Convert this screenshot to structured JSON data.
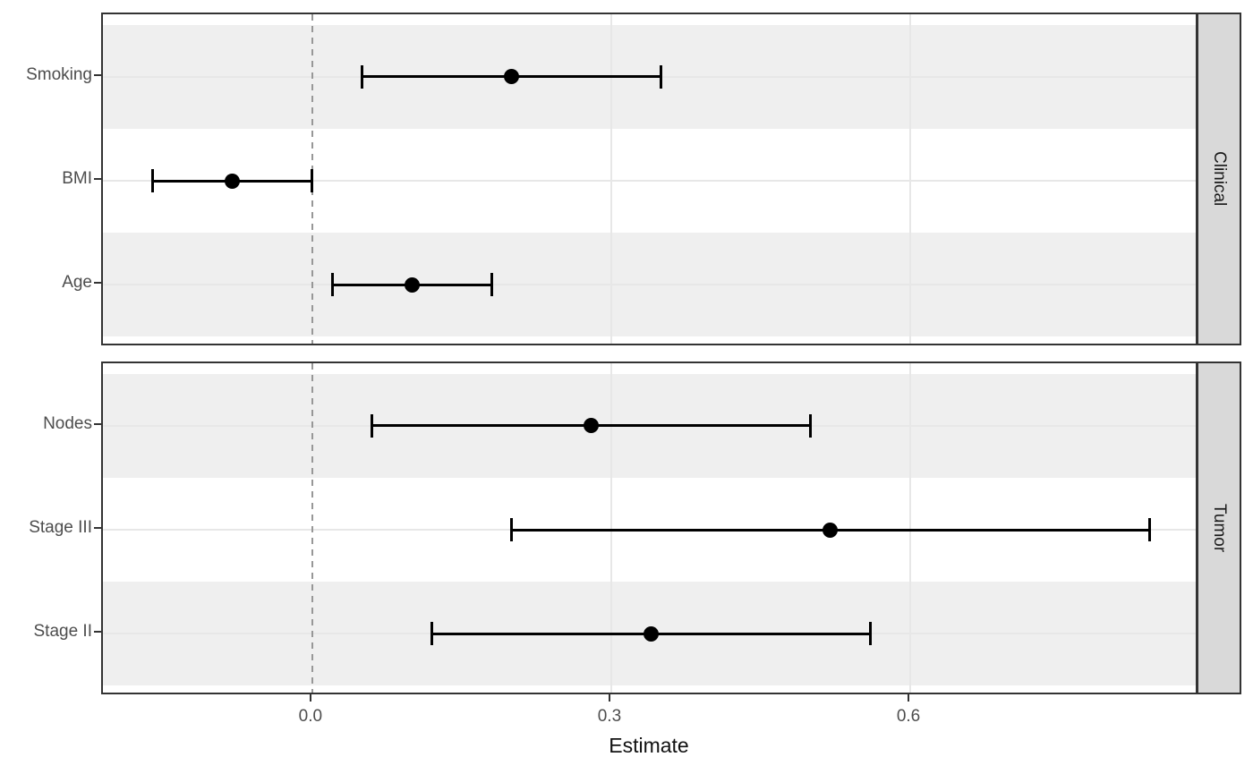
{
  "chart_data": {
    "type": "scatter",
    "subtype": "forest-plot-pointrange",
    "xlabel": "Estimate",
    "x_ticks": [
      0.0,
      0.3,
      0.6
    ],
    "x_tick_labels": [
      "0.0",
      "0.3",
      "0.6"
    ],
    "xlim": [
      -0.21,
      0.89
    ],
    "reference_line_x": 0,
    "reference_line_style": "dashed",
    "grid": true,
    "legend": "none",
    "facet_position": "right",
    "panels": [
      {
        "facet": "Clinical",
        "rows": [
          {
            "label": "Smoking",
            "estimate": 0.2,
            "lower": 0.05,
            "upper": 0.35
          },
          {
            "label": "BMI",
            "estimate": -0.08,
            "lower": -0.16,
            "upper": 0.0
          },
          {
            "label": "Age",
            "estimate": 0.1,
            "lower": 0.02,
            "upper": 0.18
          }
        ]
      },
      {
        "facet": "Tumor",
        "rows": [
          {
            "label": "Nodes",
            "estimate": 0.28,
            "lower": 0.06,
            "upper": 0.5
          },
          {
            "label": "Stage III",
            "estimate": 0.52,
            "lower": 0.2,
            "upper": 0.84
          },
          {
            "label": "Stage II",
            "estimate": 0.34,
            "lower": 0.12,
            "upper": 0.56
          }
        ]
      }
    ]
  },
  "colors": {
    "stripe": "#efefef",
    "strip_fill": "#d9d9d9",
    "panel_border": "#333333",
    "grid": "#e7e7e7",
    "axis_text": "#4d4d4d",
    "reference_line": "#979797",
    "data": "#000000"
  }
}
